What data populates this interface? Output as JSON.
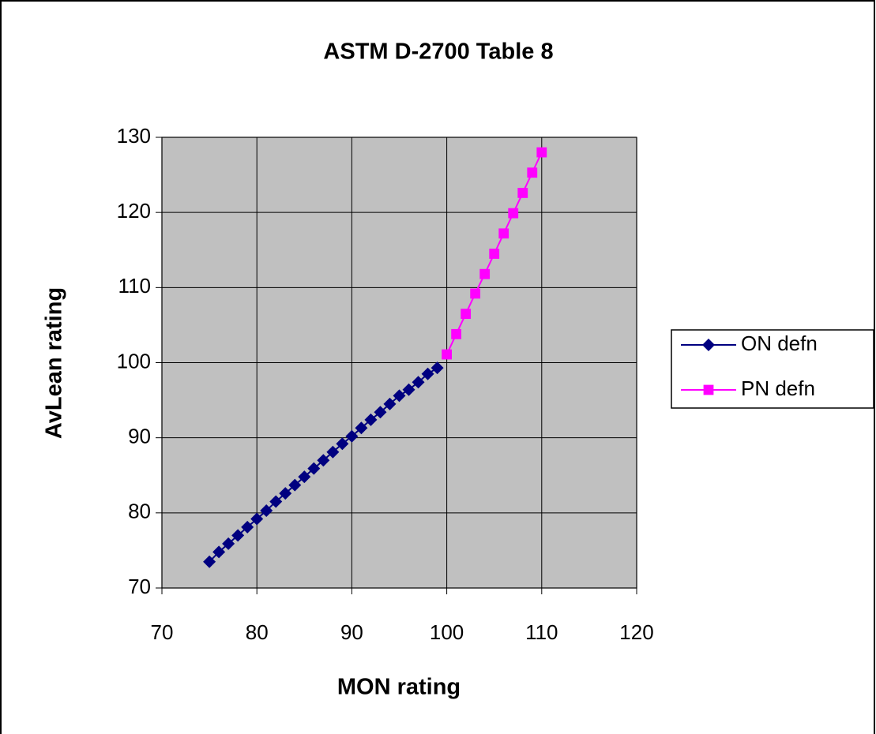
{
  "chart_data": {
    "type": "line",
    "title": "ASTM D-2700 Table 8",
    "xlabel": "MON rating",
    "ylabel": "AvLean rating",
    "xlim": [
      70,
      120
    ],
    "xticks": [
      70,
      80,
      90,
      100,
      110,
      120
    ],
    "ylim": [
      70,
      130
    ],
    "yticks": [
      70,
      80,
      90,
      100,
      110,
      120,
      130
    ],
    "grid": true,
    "legend": "right",
    "series": [
      {
        "name": "ON defn",
        "color": "#000080",
        "marker": "diamond",
        "x": [
          75,
          76,
          77,
          78,
          79,
          80,
          81,
          82,
          83,
          84,
          85,
          86,
          87,
          88,
          89,
          90,
          91,
          92,
          93,
          94,
          95,
          96,
          97,
          98,
          99
        ],
        "values": [
          73.5,
          74.8,
          75.9,
          77.0,
          78.1,
          79.2,
          80.3,
          81.5,
          82.6,
          83.7,
          84.8,
          85.9,
          87.0,
          88.1,
          89.2,
          90.2,
          91.3,
          92.4,
          93.4,
          94.5,
          95.6,
          96.4,
          97.4,
          98.5,
          99.3
        ]
      },
      {
        "name": "PN defn",
        "color": "#ff00ff",
        "marker": "square",
        "x": [
          100,
          101,
          102,
          103,
          104,
          105,
          106,
          107,
          108,
          109,
          110
        ],
        "values": [
          101.1,
          103.8,
          106.5,
          109.2,
          111.8,
          114.5,
          117.2,
          119.9,
          122.6,
          125.3,
          128.0
        ]
      }
    ]
  }
}
